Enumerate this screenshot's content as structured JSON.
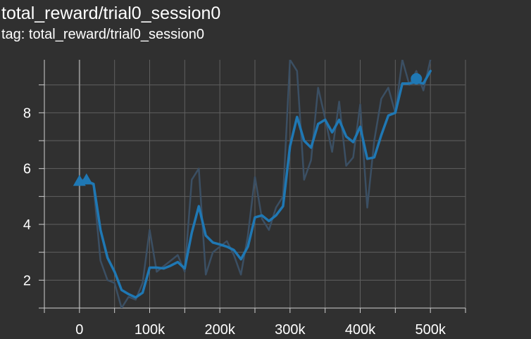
{
  "title": "total_reward/trial0_session0",
  "subtitle": "tag: total_reward/trial0_session0",
  "colors": {
    "background": "#303030",
    "grid": "#5f5f5f",
    "axis": "#cfcfcf",
    "zero_line": "#8a8a8a",
    "smoothed_line": "#1f78b4",
    "raw_line": "#3b4f63",
    "text": "#ffffff"
  },
  "chart_data": {
    "type": "line",
    "title": "total_reward/trial0_session0",
    "xlabel": "",
    "ylabel": "",
    "xlim": [
      -50000,
      550000
    ],
    "ylim": [
      1,
      9.9
    ],
    "x_ticks": [
      0,
      100000,
      200000,
      300000,
      400000,
      500000
    ],
    "x_tick_labels": [
      "0",
      "100k",
      "200k",
      "300k",
      "400k",
      "500k"
    ],
    "y_ticks": [
      2,
      4,
      6,
      8
    ],
    "y_tick_labels": [
      "2",
      "4",
      "6",
      "8"
    ],
    "grid": true,
    "series": [
      {
        "name": "",
        "style": "raw",
        "x": [
          0,
          10000,
          20000,
          30000,
          40000,
          50000,
          60000,
          70000,
          80000,
          90000,
          100000,
          110000,
          120000,
          130000,
          140000,
          150000,
          160000,
          170000,
          180000,
          190000,
          200000,
          210000,
          220000,
          230000,
          240000,
          250000,
          260000,
          270000,
          280000,
          290000,
          300000,
          310000,
          320000,
          330000,
          340000,
          350000,
          360000,
          370000,
          380000,
          390000,
          400000,
          410000,
          420000,
          430000,
          440000,
          450000,
          460000,
          470000,
          480000,
          490000,
          500000
        ],
        "y": [
          5.6,
          5.6,
          5.4,
          2.7,
          2.0,
          1.9,
          1.0,
          1.4,
          1.3,
          1.9,
          3.8,
          2.3,
          2.5,
          2.7,
          2.9,
          2.3,
          5.6,
          6.0,
          2.2,
          3.0,
          3.2,
          3.4,
          2.9,
          2.2,
          3.6,
          5.7,
          4.2,
          3.8,
          4.6,
          5.0,
          9.9,
          9.5,
          5.6,
          6.3,
          8.9,
          7.8,
          6.6,
          8.4,
          6.1,
          6.4,
          8.3,
          4.6,
          7.0,
          8.5,
          8.9,
          8.0,
          9.9,
          9.0,
          9.5,
          8.8,
          9.9
        ]
      },
      {
        "name": "",
        "style": "smoothed",
        "x": [
          0,
          10000,
          20000,
          30000,
          40000,
          50000,
          60000,
          70000,
          80000,
          90000,
          100000,
          110000,
          120000,
          130000,
          140000,
          150000,
          160000,
          170000,
          180000,
          190000,
          200000,
          210000,
          220000,
          230000,
          240000,
          250000,
          260000,
          270000,
          280000,
          290000,
          300000,
          310000,
          320000,
          330000,
          340000,
          350000,
          360000,
          370000,
          380000,
          390000,
          400000,
          410000,
          420000,
          430000,
          440000,
          450000,
          460000,
          470000,
          480000,
          490000,
          500000
        ],
        "y": [
          5.55,
          5.55,
          5.45,
          3.8,
          2.8,
          2.3,
          1.65,
          1.5,
          1.38,
          1.55,
          2.45,
          2.45,
          2.42,
          2.52,
          2.65,
          2.42,
          3.7,
          4.65,
          3.6,
          3.35,
          3.28,
          3.2,
          3.08,
          2.75,
          3.2,
          4.25,
          4.32,
          4.12,
          4.32,
          4.65,
          6.8,
          7.85,
          7.0,
          6.75,
          7.6,
          7.75,
          7.3,
          7.75,
          7.15,
          6.95,
          7.5,
          6.35,
          6.4,
          7.2,
          7.9,
          8.0,
          9.05,
          9.05,
          9.1,
          9.05,
          9.5
        ]
      }
    ],
    "markers": [
      {
        "shape": "triangle",
        "x": 0,
        "y": 5.55
      },
      {
        "shape": "triangle",
        "x": 10000,
        "y": 5.6
      },
      {
        "shape": "circle",
        "x": 480000,
        "y": 9.22
      }
    ]
  }
}
